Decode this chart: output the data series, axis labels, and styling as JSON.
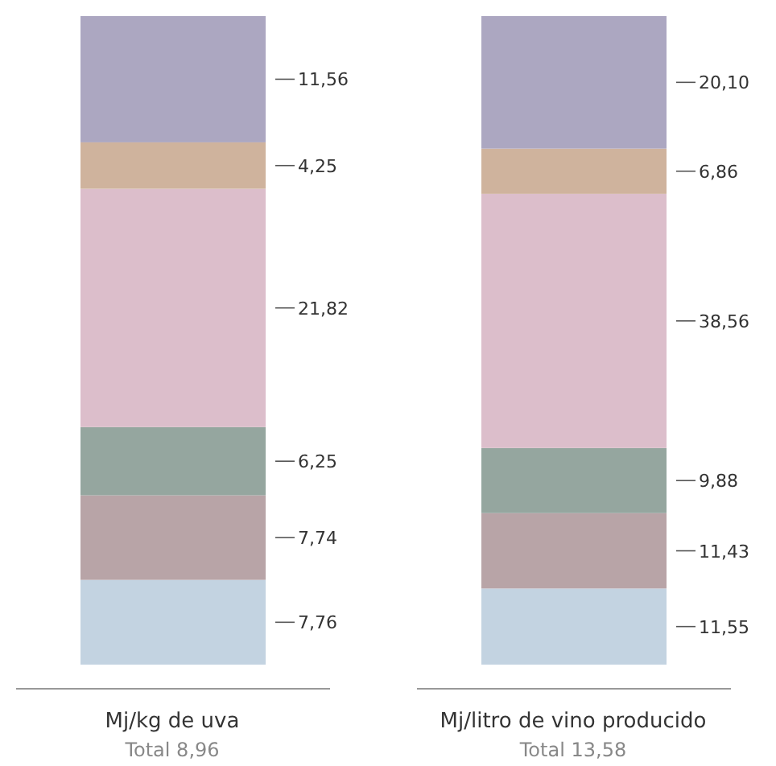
{
  "chart_data": [
    {
      "type": "bar",
      "stacked": true,
      "categories": [
        null
      ],
      "ylim": [
        0,
        59.38
      ],
      "tick_labels": false,
      "xlabel": "Mj/kg de uva",
      "annotations": [
        "Total 8,96"
      ],
      "series": [
        {
          "color": "#c3d3e1",
          "values": [
            7.76
          ],
          "value_labels": [
            "7,76"
          ]
        },
        {
          "color": "#b8a4a7",
          "values": [
            7.74
          ],
          "value_labels": [
            "7,74"
          ]
        },
        {
          "color": "#95a69f",
          "values": [
            6.25
          ],
          "value_labels": [
            "6,25"
          ]
        },
        {
          "color": "#dcbecb",
          "values": [
            21.82
          ],
          "value_labels": [
            "21,82"
          ]
        },
        {
          "color": "#cfb39d",
          "values": [
            4.25
          ],
          "value_labels": [
            "4,25"
          ]
        },
        {
          "color": "#aca7c1",
          "values": [
            11.56
          ],
          "value_labels": [
            "11,56"
          ]
        }
      ]
    },
    {
      "type": "bar",
      "stacked": true,
      "categories": [
        null
      ],
      "ylim": [
        0,
        98.38
      ],
      "tick_labels": false,
      "xlabel": "Mj/litro de vino producido",
      "annotations": [
        "Total 13,58"
      ],
      "series": [
        {
          "color": "#c3d3e1",
          "values": [
            11.55
          ],
          "value_labels": [
            "11,55"
          ]
        },
        {
          "color": "#b8a4a7",
          "values": [
            11.43
          ],
          "value_labels": [
            "11,43"
          ]
        },
        {
          "color": "#95a69f",
          "values": [
            9.88
          ],
          "value_labels": [
            "9,88"
          ]
        },
        {
          "color": "#dcbecb",
          "values": [
            38.56
          ],
          "value_labels": [
            "38,56"
          ]
        },
        {
          "color": "#cfb39d",
          "values": [
            6.86
          ],
          "value_labels": [
            "6,86"
          ]
        },
        {
          "color": "#aca7c1",
          "values": [
            20.1
          ],
          "value_labels": [
            "20,10"
          ]
        }
      ]
    }
  ]
}
